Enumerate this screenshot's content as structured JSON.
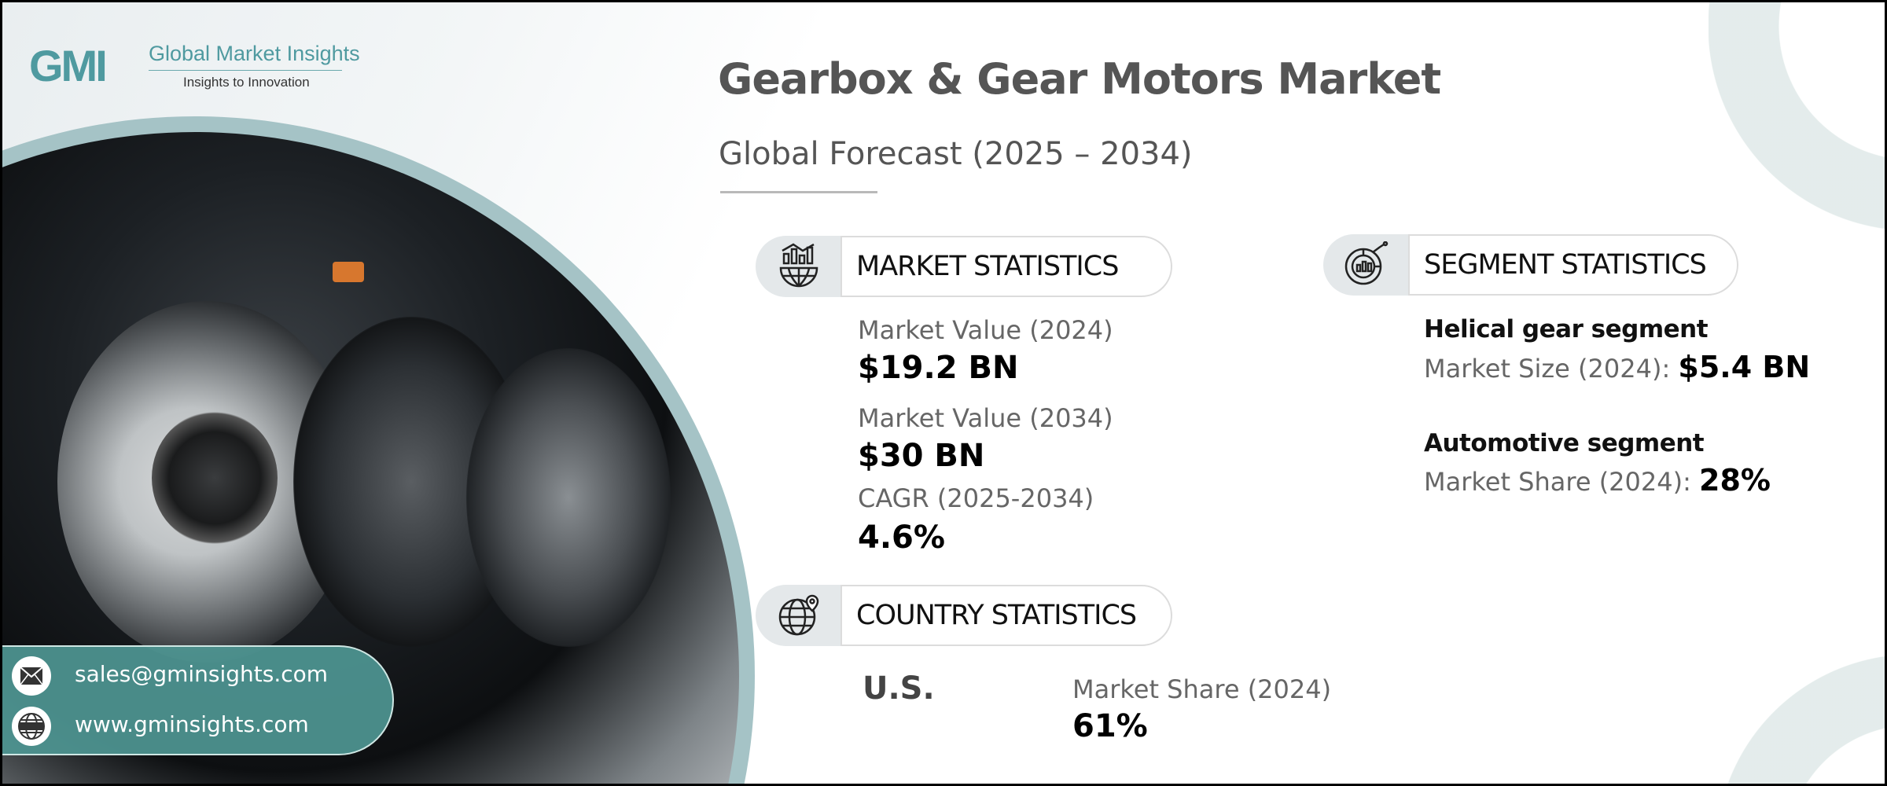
{
  "brand": {
    "logo_mark": "GMI",
    "name": "Global Market Insights",
    "tagline": "Insights to Innovation",
    "accent_color": "#4f9aa0"
  },
  "header": {
    "title": "Gearbox & Gear Motors Market",
    "subtitle": "Global Forecast (2025 – 2034)"
  },
  "market_statistics": {
    "heading": "MARKET STATISTICS",
    "icon": "chart-globe-icon",
    "items": [
      {
        "label": "Market Value (2024)",
        "value": "$19.2 BN"
      },
      {
        "label": "Market Value (2034)",
        "value": "$30 BN"
      },
      {
        "label": "CAGR (2025-2034)",
        "value": "4.6%"
      }
    ]
  },
  "segment_statistics": {
    "heading": "SEGMENT STATISTICS",
    "icon": "pie-chart-icon",
    "items": [
      {
        "title": "Helical gear segment",
        "label": "Market Size (2024):",
        "value": "$5.4 BN"
      },
      {
        "title": "Automotive segment",
        "label": "Market Share (2024):",
        "value": "28%"
      }
    ]
  },
  "country_statistics": {
    "heading": "COUNTRY STATISTICS",
    "icon": "globe-pin-icon",
    "country": "U.S.",
    "label": "Market Share (2024)",
    "value": "61%"
  },
  "contact": {
    "email": "sales@gminsights.com",
    "website": "www.gminsights.com",
    "email_icon": "envelope-icon",
    "website_icon": "www-globe-icon"
  }
}
